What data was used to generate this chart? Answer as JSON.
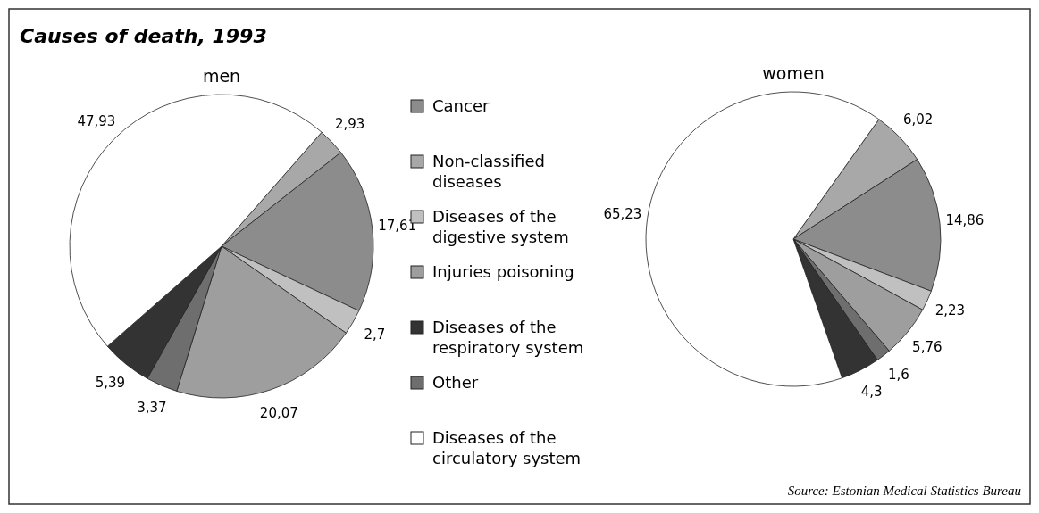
{
  "chart_data": [
    {
      "type": "pie",
      "title": "Causes of death, 1993",
      "subtitle": "men",
      "categories": [
        "Non-classified diseases",
        "Cancer",
        "Diseases of the digestive system",
        "Injuries poisoning",
        "Other",
        "Diseases of the respiratory system",
        "Diseases of the circulatory system"
      ],
      "values": [
        2.93,
        17.61,
        2.7,
        20.07,
        3.37,
        5.39,
        47.93
      ],
      "value_labels": [
        "2,93",
        "17,61",
        "2,7",
        "20,07",
        "3,37",
        "5,39",
        "47,93"
      ],
      "colors": [
        "#a8a8a8",
        "#8c8c8c",
        "#c0c0c0",
        "#9e9e9e",
        "#6e6e6e",
        "#333333",
        "#ffffff"
      ],
      "legend": "right"
    },
    {
      "type": "pie",
      "subtitle": "women",
      "categories": [
        null,
        null,
        null,
        null,
        null,
        null,
        null
      ],
      "values": [
        6.02,
        14.86,
        2.23,
        5.76,
        1.6,
        4.3,
        65.23
      ],
      "value_labels": [
        "6,02",
        "14,86",
        "2,23",
        "5,76",
        "1,6",
        "4,3",
        "65,23"
      ],
      "colors": [
        "#a8a8a8",
        "#8c8c8c",
        "#c0c0c0",
        "#9e9e9e",
        "#6e6e6e",
        "#333333",
        "#ffffff"
      ],
      "annotations": [
        "Source: Estonian Medical Statistics Bureau"
      ]
    }
  ]
}
